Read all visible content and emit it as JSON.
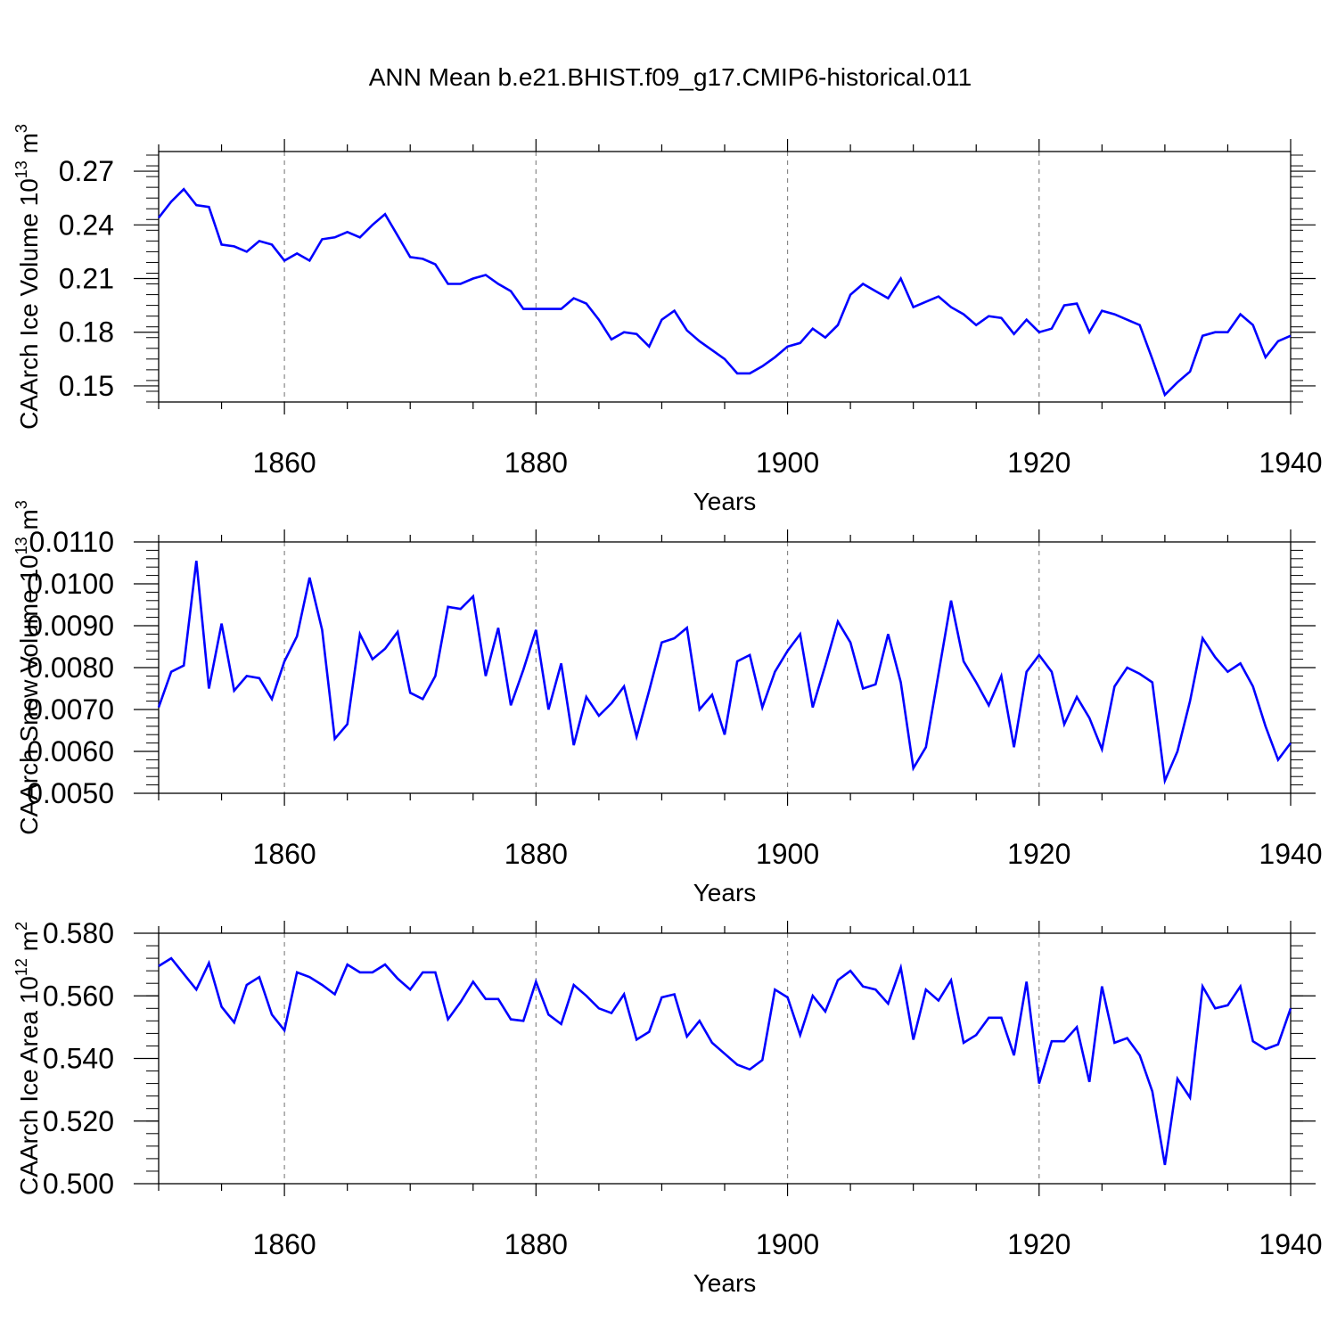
{
  "title": "ANN Mean b.e21.BHIST.f09_g17.CMIP6-historical.011",
  "line_color": "#0000ff",
  "chart_data": [
    {
      "type": "line",
      "ylabel": "CAArch Ice Volume 10",
      "ylabel_exp": "13",
      "ylabel_unit": " m",
      "ylabel_unit_exp": "3",
      "xlabel": "Years",
      "xlim": [
        1850,
        1940
      ],
      "ylim": [
        0.141,
        0.281
      ],
      "x_ticks": [
        1860,
        1880,
        1900,
        1920,
        1940
      ],
      "y_ticks": [
        0.15,
        0.18,
        0.21,
        0.24,
        0.27
      ],
      "y_tick_labels": [
        "0.15",
        "0.18",
        "0.21",
        "0.24",
        "0.27"
      ],
      "y_minor_step": 0.006,
      "grid": "vertical dashed at major x ticks",
      "x": [
        1850,
        1851,
        1852,
        1853,
        1854,
        1855,
        1856,
        1857,
        1858,
        1859,
        1860,
        1861,
        1862,
        1863,
        1864,
        1865,
        1866,
        1867,
        1868,
        1869,
        1870,
        1871,
        1872,
        1873,
        1874,
        1875,
        1876,
        1877,
        1878,
        1879,
        1880,
        1881,
        1882,
        1883,
        1884,
        1885,
        1886,
        1887,
        1888,
        1889,
        1890,
        1891,
        1892,
        1893,
        1894,
        1895,
        1896,
        1897,
        1898,
        1899,
        1900,
        1901,
        1902,
        1903,
        1904,
        1905,
        1906,
        1907,
        1908,
        1909,
        1910,
        1911,
        1912,
        1913,
        1914,
        1915,
        1916,
        1917,
        1918,
        1919,
        1920,
        1921,
        1922,
        1923,
        1924,
        1925,
        1926,
        1927,
        1928,
        1929,
        1930,
        1931,
        1932,
        1933,
        1934,
        1935,
        1936,
        1937,
        1938,
        1939,
        1940
      ],
      "values": [
        0.244,
        0.253,
        0.26,
        0.251,
        0.25,
        0.229,
        0.228,
        0.225,
        0.231,
        0.229,
        0.22,
        0.224,
        0.22,
        0.232,
        0.233,
        0.236,
        0.233,
        0.24,
        0.246,
        0.234,
        0.222,
        0.221,
        0.218,
        0.207,
        0.207,
        0.21,
        0.212,
        0.207,
        0.203,
        0.193,
        0.193,
        0.193,
        0.193,
        0.199,
        0.196,
        0.187,
        0.176,
        0.18,
        0.179,
        0.172,
        0.187,
        0.192,
        0.181,
        0.175,
        0.17,
        0.165,
        0.157,
        0.157,
        0.161,
        0.166,
        0.172,
        0.174,
        0.182,
        0.177,
        0.184,
        0.201,
        0.207,
        0.203,
        0.199,
        0.21,
        0.194,
        0.197,
        0.2,
        0.194,
        0.19,
        0.184,
        0.189,
        0.188,
        0.179,
        0.187,
        0.18,
        0.182,
        0.195,
        0.196,
        0.18,
        0.192,
        0.19,
        0.187,
        0.184,
        0.165,
        0.145,
        0.152,
        0.158,
        0.178,
        0.18,
        0.18,
        0.19,
        0.184,
        0.166,
        0.175,
        0.178
      ]
    },
    {
      "type": "line",
      "ylabel": "CAArch Snow Volume 10",
      "ylabel_exp": "13",
      "ylabel_unit": " m",
      "ylabel_unit_exp": "3",
      "xlabel": "Years",
      "xlim": [
        1850,
        1940
      ],
      "ylim": [
        0.005,
        0.011
      ],
      "x_ticks": [
        1860,
        1880,
        1900,
        1920,
        1940
      ],
      "y_ticks": [
        0.005,
        0.006,
        0.007,
        0.008,
        0.009,
        0.01,
        0.011
      ],
      "y_tick_labels": [
        "0.0050",
        "0.0060",
        "0.0070",
        "0.0080",
        "0.0090",
        "0.0100",
        "0.0110"
      ],
      "y_minor_step": 0.0002,
      "grid": "vertical dashed at major x ticks",
      "x": [
        1850,
        1851,
        1852,
        1853,
        1854,
        1855,
        1856,
        1857,
        1858,
        1859,
        1860,
        1861,
        1862,
        1863,
        1864,
        1865,
        1866,
        1867,
        1868,
        1869,
        1870,
        1871,
        1872,
        1873,
        1874,
        1875,
        1876,
        1877,
        1878,
        1879,
        1880,
        1881,
        1882,
        1883,
        1884,
        1885,
        1886,
        1887,
        1888,
        1889,
        1890,
        1891,
        1892,
        1893,
        1894,
        1895,
        1896,
        1897,
        1898,
        1899,
        1900,
        1901,
        1902,
        1903,
        1904,
        1905,
        1906,
        1907,
        1908,
        1909,
        1910,
        1911,
        1912,
        1913,
        1914,
        1915,
        1916,
        1917,
        1918,
        1919,
        1920,
        1921,
        1922,
        1923,
        1924,
        1925,
        1926,
        1927,
        1928,
        1929,
        1930,
        1931,
        1932,
        1933,
        1934,
        1935,
        1936,
        1937,
        1938,
        1939,
        1940
      ],
      "values": [
        0.00705,
        0.0079,
        0.00805,
        0.01055,
        0.0075,
        0.00905,
        0.00745,
        0.0078,
        0.00775,
        0.00725,
        0.00815,
        0.00875,
        0.01015,
        0.0089,
        0.0063,
        0.00665,
        0.0088,
        0.0082,
        0.00845,
        0.00885,
        0.0074,
        0.00725,
        0.0078,
        0.00945,
        0.0094,
        0.0097,
        0.0078,
        0.00895,
        0.0071,
        0.00795,
        0.0089,
        0.007,
        0.0081,
        0.00615,
        0.0073,
        0.00685,
        0.00715,
        0.00755,
        0.00635,
        0.00745,
        0.0086,
        0.0087,
        0.00895,
        0.007,
        0.00735,
        0.0064,
        0.00815,
        0.0083,
        0.00705,
        0.0079,
        0.0084,
        0.0088,
        0.00705,
        0.00805,
        0.0091,
        0.0086,
        0.0075,
        0.0076,
        0.0088,
        0.00765,
        0.0056,
        0.0061,
        0.00785,
        0.0096,
        0.00815,
        0.00765,
        0.0071,
        0.0078,
        0.0061,
        0.0079,
        0.0083,
        0.0079,
        0.00665,
        0.0073,
        0.0068,
        0.00605,
        0.00755,
        0.008,
        0.00785,
        0.00765,
        0.0053,
        0.006,
        0.0072,
        0.0087,
        0.00825,
        0.0079,
        0.0081,
        0.00755,
        0.0066,
        0.0058,
        0.0062
      ]
    },
    {
      "type": "line",
      "ylabel": "CAArch Ice Area 10",
      "ylabel_exp": "12",
      "ylabel_unit": " m",
      "ylabel_unit_exp": "2",
      "xlabel": "Years",
      "xlim": [
        1850,
        1940
      ],
      "ylim": [
        0.5,
        0.58
      ],
      "x_ticks": [
        1860,
        1880,
        1900,
        1920,
        1940
      ],
      "y_ticks": [
        0.5,
        0.52,
        0.54,
        0.56,
        0.58
      ],
      "y_tick_labels": [
        "0.500",
        "0.520",
        "0.540",
        "0.560",
        "0.580"
      ],
      "y_minor_step": 0.004,
      "grid": "vertical dashed at major x ticks",
      "x": [
        1850,
        1851,
        1852,
        1853,
        1854,
        1855,
        1856,
        1857,
        1858,
        1859,
        1860,
        1861,
        1862,
        1863,
        1864,
        1865,
        1866,
        1867,
        1868,
        1869,
        1870,
        1871,
        1872,
        1873,
        1874,
        1875,
        1876,
        1877,
        1878,
        1879,
        1880,
        1881,
        1882,
        1883,
        1884,
        1885,
        1886,
        1887,
        1888,
        1889,
        1890,
        1891,
        1892,
        1893,
        1894,
        1895,
        1896,
        1897,
        1898,
        1899,
        1900,
        1901,
        1902,
        1903,
        1904,
        1905,
        1906,
        1907,
        1908,
        1909,
        1910,
        1911,
        1912,
        1913,
        1914,
        1915,
        1916,
        1917,
        1918,
        1919,
        1920,
        1921,
        1922,
        1923,
        1924,
        1925,
        1926,
        1927,
        1928,
        1929,
        1930,
        1931,
        1932,
        1933,
        1934,
        1935,
        1936,
        1937,
        1938,
        1939,
        1940
      ],
      "values": [
        0.5695,
        0.572,
        0.567,
        0.562,
        0.5705,
        0.5565,
        0.5515,
        0.5635,
        0.566,
        0.554,
        0.549,
        0.5675,
        0.566,
        0.5635,
        0.5605,
        0.57,
        0.5675,
        0.5675,
        0.57,
        0.5655,
        0.562,
        0.5675,
        0.5675,
        0.5525,
        0.558,
        0.5645,
        0.559,
        0.559,
        0.5525,
        0.552,
        0.5645,
        0.554,
        0.551,
        0.5635,
        0.56,
        0.556,
        0.5545,
        0.5605,
        0.546,
        0.5485,
        0.5595,
        0.5605,
        0.547,
        0.552,
        0.545,
        0.5415,
        0.538,
        0.5365,
        0.5395,
        0.562,
        0.5595,
        0.5475,
        0.56,
        0.555,
        0.565,
        0.568,
        0.563,
        0.562,
        0.5575,
        0.569,
        0.546,
        0.562,
        0.5585,
        0.565,
        0.545,
        0.5475,
        0.553,
        0.553,
        0.541,
        0.5645,
        0.532,
        0.5455,
        0.5455,
        0.55,
        0.5325,
        0.563,
        0.545,
        0.5465,
        0.541,
        0.5295,
        0.506,
        0.5335,
        0.5275,
        0.563,
        0.556,
        0.557,
        0.563,
        0.5455,
        0.543,
        0.5445,
        0.556
      ]
    }
  ]
}
